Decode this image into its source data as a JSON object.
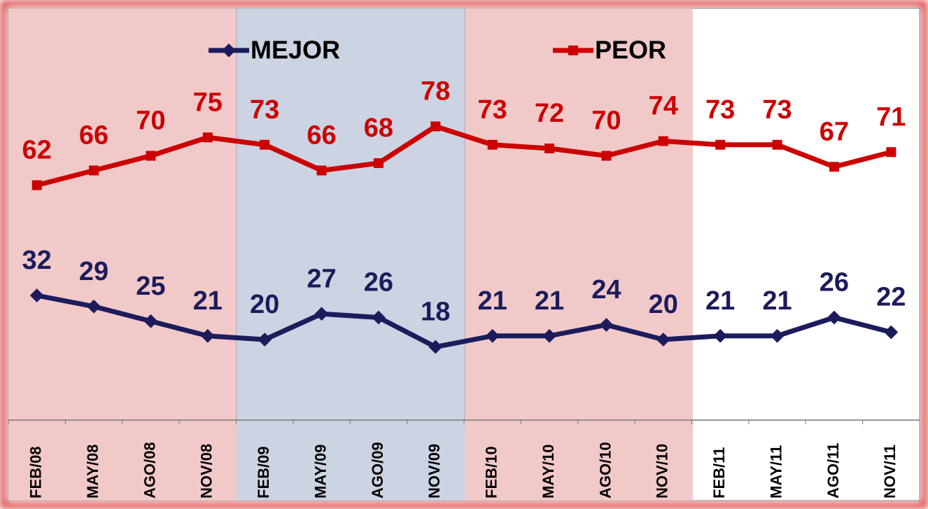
{
  "chart_data": {
    "type": "line",
    "categories": [
      "FEB/08",
      "MAY/08",
      "AGO/08",
      "NOV/08",
      "FEB/09",
      "MAY/09",
      "AGO/09",
      "NOV/09",
      "FEB/10",
      "MAY/10",
      "AGO/10",
      "NOV/10",
      "FEB/11",
      "MAY/11",
      "AGO/11",
      "NOV/11"
    ],
    "series": [
      {
        "name": "MEJOR",
        "color": "#1c1c5c",
        "values": [
          32,
          29,
          25,
          21,
          20,
          27,
          26,
          18,
          21,
          21,
          24,
          20,
          21,
          21,
          26,
          22
        ]
      },
      {
        "name": "PEOR",
        "color": "#cc0000",
        "values": [
          62,
          66,
          70,
          75,
          73,
          66,
          68,
          78,
          73,
          72,
          70,
          74,
          73,
          73,
          67,
          71
        ]
      }
    ]
  }
}
